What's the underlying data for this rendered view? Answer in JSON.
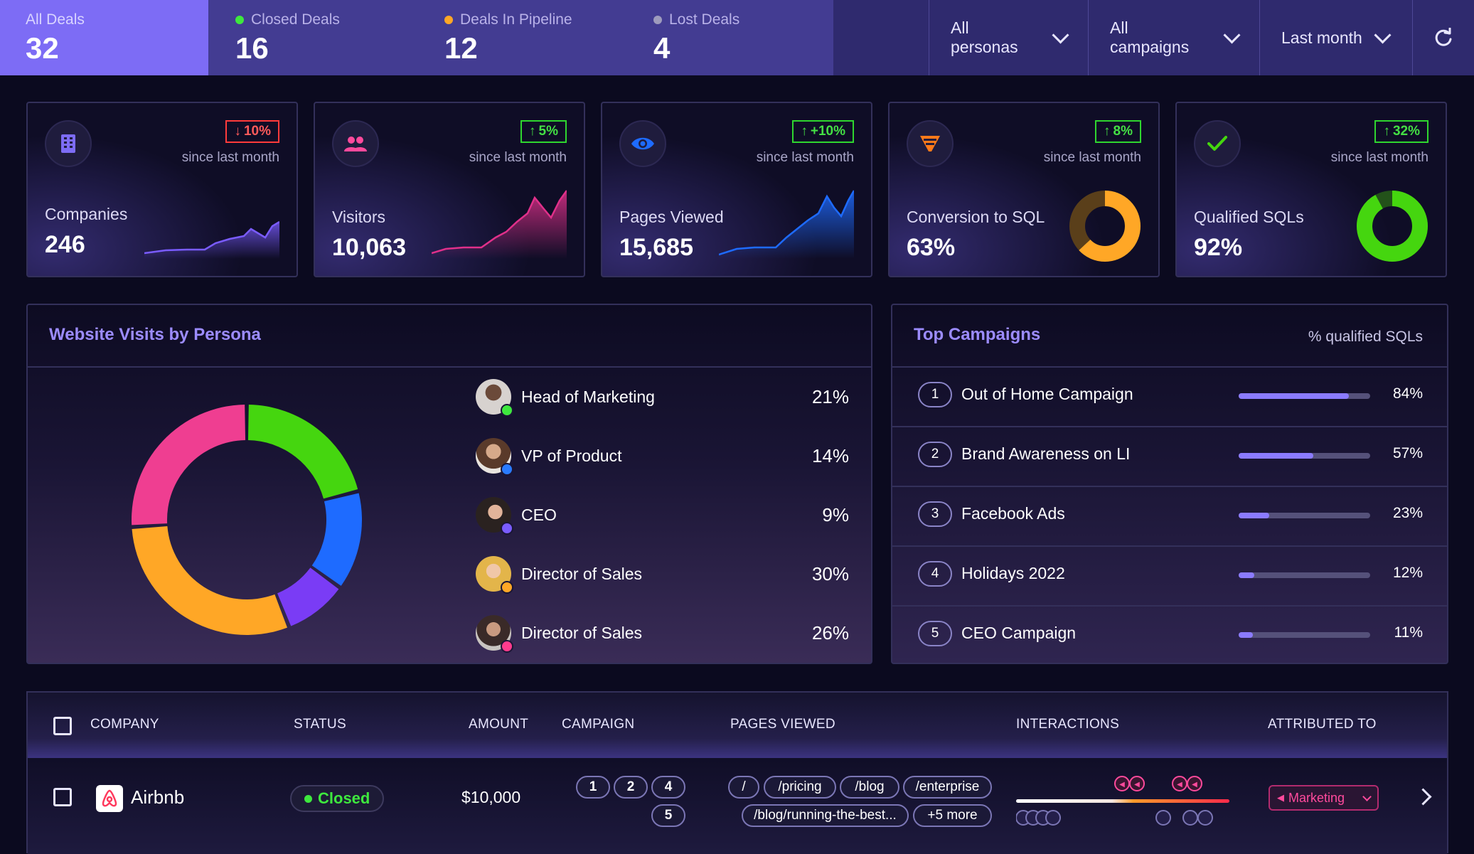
{
  "tabs": [
    {
      "label": "All Deals",
      "count": "32",
      "dot_color": ""
    },
    {
      "label": "Closed Deals",
      "count": "16",
      "dot_color": "#3ee83e"
    },
    {
      "label": "Deals In Pipeline",
      "count": "12",
      "dot_color": "#ffa726"
    },
    {
      "label": "Lost Deals",
      "count": "4",
      "dot_color": "#9e9bbd"
    }
  ],
  "filters": {
    "personas": "All personas",
    "campaigns": "All campaigns",
    "period": "Last month"
  },
  "kpis": [
    {
      "label": "Companies",
      "value": "246",
      "change": "10%",
      "direction": "down",
      "since": "since last month",
      "icon": "building-icon",
      "spark_color": "#7a5cff"
    },
    {
      "label": "Visitors",
      "value": "10,063",
      "change": "5%",
      "direction": "up",
      "since": "since last month",
      "icon": "users-icon",
      "spark_color": "#e0308a"
    },
    {
      "label": "Pages Viewed",
      "value": "15,685",
      "change": "+10%",
      "direction": "up",
      "since": "since last month",
      "icon": "eye-icon",
      "spark_color": "#1e6bff"
    },
    {
      "label": "Conversion to SQL",
      "value": "63%",
      "change": "8%",
      "direction": "up",
      "since": "since last month",
      "icon": "funnel-icon",
      "donut_fraction": 0.63,
      "donut_color": "#ffa726"
    },
    {
      "label": "Qualified SQLs",
      "value": "92%",
      "change": "32%",
      "direction": "up",
      "since": "since last month",
      "icon": "check-icon",
      "donut_fraction": 0.92,
      "donut_color": "#45d60f"
    }
  ],
  "personas_panel": {
    "title": "Website Visits by Persona",
    "items": [
      {
        "name": "Head of Marketing",
        "pct": "21%",
        "status_color": "#3ee83e"
      },
      {
        "name": "VP of Product",
        "pct": "14%",
        "status_color": "#2a7bff"
      },
      {
        "name": "CEO",
        "pct": "9%",
        "status_color": "#7a5cff"
      },
      {
        "name": "Director of Sales",
        "pct": "30%",
        "status_color": "#ffa726"
      },
      {
        "name": "Director of Sales",
        "pct": "26%",
        "status_color": "#ff3b8d"
      }
    ]
  },
  "chart_data": {
    "type": "pie",
    "categories": [
      "Head of Marketing",
      "VP of Product",
      "CEO",
      "Director of Sales",
      "Director of Sales"
    ],
    "values": [
      21,
      14,
      9,
      30,
      26
    ],
    "colors": [
      "#45d60f",
      "#1e6bff",
      "#7a3cf5",
      "#ffa726",
      "#ef3e91"
    ]
  },
  "campaigns_panel": {
    "title": "Top Campaigns",
    "subtitle": "% qualified SQLs",
    "items": [
      {
        "rank": "1",
        "name": "Out of Home Campaign",
        "pct": "84%",
        "value": 0.84
      },
      {
        "rank": "2",
        "name": "Brand Awareness on LI",
        "pct": "57%",
        "value": 0.57
      },
      {
        "rank": "3",
        "name": "Facebook Ads",
        "pct": "23%",
        "value": 0.23
      },
      {
        "rank": "4",
        "name": "Holidays 2022",
        "pct": "12%",
        "value": 0.12
      },
      {
        "rank": "5",
        "name": "CEO Campaign",
        "pct": "11%",
        "value": 0.11
      }
    ]
  },
  "table": {
    "headers": {
      "company": "COMPANY",
      "status": "STATUS",
      "amount": "AMOUNT",
      "campaign": "CAMPAIGN",
      "pages": "PAGES VIEWED",
      "interactions": "INTERACTIONS",
      "attributed": "ATTRIBUTED TO"
    },
    "rows": [
      {
        "company": "Airbnb",
        "status": "Closed",
        "amount": "$10,000",
        "campaigns": [
          "1",
          "2",
          "4",
          "5"
        ],
        "pages": [
          "/",
          "/pricing",
          "/blog",
          "/enterprise",
          "/blog/running-the-best...",
          "+5 more"
        ],
        "attributed": "Marketing"
      }
    ]
  }
}
